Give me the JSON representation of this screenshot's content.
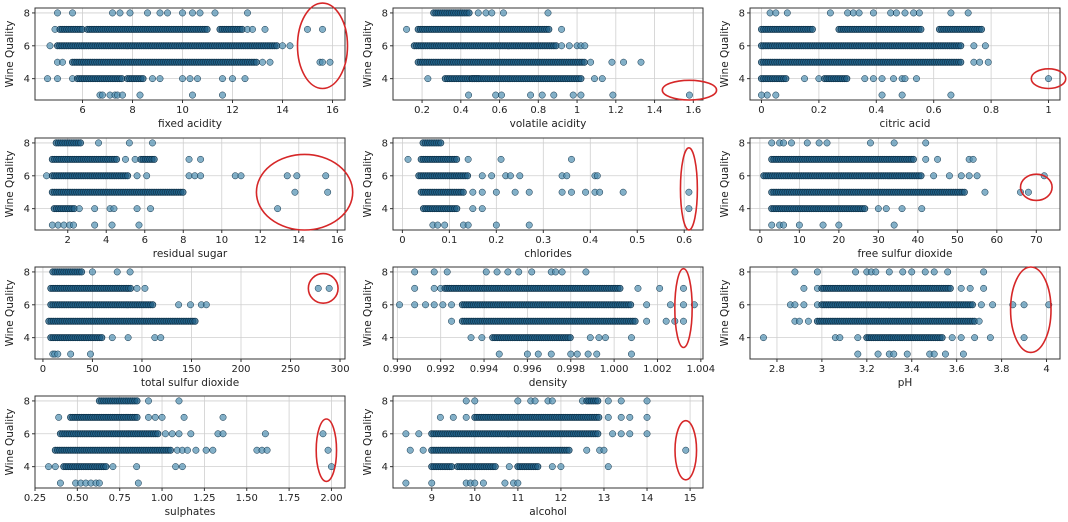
{
  "chart_data": [
    {
      "type": "scatter",
      "xlabel": "fixed acidity",
      "ylabel": "Wine Quality",
      "xlim": [
        4.1,
        16.5
      ],
      "ylim": [
        2.7,
        8.3
      ],
      "xticks": [
        6,
        8,
        10,
        12,
        14,
        16
      ],
      "yticks": [
        4,
        6,
        8
      ],
      "grid": true,
      "rows": {
        "8": [
          5,
          5.6,
          7.2,
          7.5,
          7.9,
          8.6,
          9.1,
          9.4,
          10,
          10.4,
          10.7,
          11.3,
          12.6
        ],
        "7": [
          4.9,
          [
            5.1,
            6
          ],
          [
            6.2,
            11
          ],
          [
            11.5,
            12.4
          ],
          12.6,
          12.8,
          13.3,
          15,
          15.6
        ],
        "6": [
          4.7,
          [
            5,
            13.8
          ],
          14,
          14.3
        ],
        "5": [
          5,
          5.2,
          [
            5.6,
            13
          ],
          13.2,
          13.5,
          15.5,
          15.6,
          15.9
        ],
        "4": [
          4.6,
          5,
          5.6,
          [
            5.8,
            7.6
          ],
          [
            7.8,
            8.5
          ],
          8.8,
          9.1,
          10,
          10.3,
          10.6,
          11.6,
          12,
          12.5
        ],
        "3": [
          6.7,
          6.8,
          7.1,
          7.3,
          7.4,
          7.6,
          8.3,
          10.4,
          11.6
        ]
      },
      "annotation": {
        "shape": "ellipse",
        "color": "#d62728",
        "cx": 15.6,
        "cy": 6,
        "rx": 1.0,
        "ry": 2.6
      }
    },
    {
      "type": "scatter",
      "xlabel": "volatile acidity",
      "ylabel": "Wine Quality",
      "xlim": [
        0.05,
        1.65
      ],
      "ylim": [
        2.7,
        8.3
      ],
      "xticks": [
        0.2,
        0.4,
        0.6,
        0.8,
        1.0,
        1.2,
        1.4,
        1.6
      ],
      "yticks": [
        4,
        6,
        8
      ],
      "grid": true,
      "rows": {
        "8": [
          [
            0.26,
            0.45
          ],
          0.49,
          0.53,
          0.56,
          0.62,
          0.85
        ],
        "7": [
          0.12,
          [
            0.18,
            0.86
          ],
          0.92
        ],
        "6": [
          [
            0.16,
            0.9
          ],
          0.92,
          0.96,
          1.0,
          1.02,
          1.04
        ],
        "5": [
          [
            0.18,
            1.04
          ],
          1.07,
          1.18,
          1.24,
          1.33
        ],
        "4": [
          0.23,
          [
            0.32,
            0.5
          ],
          [
            0.46,
            1.02
          ],
          1.09,
          1.13
        ],
        "3": [
          0.44,
          0.58,
          0.61,
          0.76,
          0.82,
          0.88,
          0.98,
          1.02,
          1.185,
          1.58
        ]
      },
      "annotation": {
        "shape": "ellipse",
        "color": "#d62728",
        "cx": 1.58,
        "cy": 3.3,
        "rx": 0.14,
        "ry": 0.6
      }
    },
    {
      "type": "scatter",
      "xlabel": "citric acid",
      "ylabel": "Wine Quality",
      "xlim": [
        -0.04,
        1.04
      ],
      "ylim": [
        2.7,
        8.3
      ],
      "xticks": [
        0.0,
        0.2,
        0.4,
        0.6,
        0.8,
        1.0
      ],
      "yticks": [
        4,
        6,
        8
      ],
      "grid": true,
      "rows": {
        "8": [
          0.03,
          0.05,
          0.09,
          0.24,
          0.3,
          0.32,
          0.34,
          0.39,
          0.45,
          0.47,
          0.5,
          0.53,
          0.55,
          0.66,
          0.72
        ],
        "7": [
          [
            0,
            0.18
          ],
          [
            0.27,
            0.56
          ],
          [
            0.62,
            0.77
          ]
        ],
        "6": [
          [
            0,
            0.7
          ],
          0.74,
          0.78
        ],
        "5": [
          [
            0,
            0.7
          ],
          0.74,
          0.76,
          0.79
        ],
        "4": [
          [
            0,
            0.09
          ],
          0.15,
          0.2,
          [
            0.22,
            0.3
          ],
          0.36,
          0.39,
          0.42,
          0.46,
          0.49,
          0.5,
          0.54,
          1.0
        ],
        "3": [
          0,
          0.02,
          0.05,
          0.42,
          0.49,
          0.66
        ]
      },
      "annotation": {
        "shape": "ellipse",
        "color": "#d62728",
        "cx": 1.0,
        "cy": 4,
        "rx": 0.06,
        "ry": 0.6
      }
    },
    {
      "type": "scatter",
      "xlabel": "residual sugar",
      "ylabel": "Wine Quality",
      "xlim": [
        0.3,
        16.4
      ],
      "ylim": [
        2.7,
        8.3
      ],
      "xticks": [
        2,
        4,
        6,
        8,
        10,
        12,
        14,
        16
      ],
      "yticks": [
        4,
        6,
        8
      ],
      "grid": true,
      "rows": {
        "8": [
          [
            1.4,
            2.7
          ],
          3.6,
          5.2,
          6.4
        ],
        "7": [
          [
            1.2,
            4.6
          ],
          5,
          5.5,
          [
            5.8,
            6.6
          ],
          8.3,
          8.9
        ],
        "6": [
          0.9,
          [
            1.2,
            5.2
          ],
          5.6,
          6.1,
          8.3,
          8.6,
          8.9,
          10.7,
          11,
          13.4,
          13.9,
          15.4
        ],
        "5": [
          [
            1.2,
            8
          ],
          13.8,
          15.5
        ],
        "4": [
          [
            1.3,
            2.4
          ],
          2.6,
          3.4,
          4.2,
          4.4,
          5.6,
          6.3,
          12.9
        ],
        "3": [
          1.2,
          1.5,
          1.8,
          2.1,
          2.3,
          3.4,
          4.3,
          5.7
        ]
      },
      "annotation": {
        "shape": "ellipse",
        "color": "#d62728",
        "cx": 14.3,
        "cy": 5,
        "rx": 2.5,
        "ry": 2.3
      }
    },
    {
      "type": "scatter",
      "xlabel": "chlorides",
      "ylabel": "Wine Quality",
      "xlim": [
        -0.02,
        0.64
      ],
      "ylim": [
        2.7,
        8.3
      ],
      "xticks": [
        0.0,
        0.1,
        0.2,
        0.3,
        0.4,
        0.5,
        0.6
      ],
      "yticks": [
        4,
        6,
        8
      ],
      "grid": true,
      "rows": {
        "8": [
          [
            0.044,
            0.086
          ]
        ],
        "7": [
          0.012,
          [
            0.04,
            0.12
          ],
          0.14,
          0.21,
          0.36
        ],
        "6": [
          [
            0.035,
            0.14
          ],
          0.17,
          0.19,
          0.22,
          0.23,
          0.25,
          0.34,
          0.35,
          0.41,
          0.415
        ],
        "5": [
          [
            0.04,
            0.13
          ],
          0.15,
          0.17,
          0.2,
          0.24,
          0.27,
          0.34,
          0.36,
          0.39,
          0.41,
          0.42,
          0.47,
          0.61
        ],
        "4": [
          [
            0.045,
            0.12
          ],
          0.15,
          0.17,
          0.61
        ],
        "3": [
          0.065,
          0.075,
          0.09,
          0.13,
          0.14,
          0.2,
          0.27
        ]
      },
      "annotation": {
        "shape": "ellipse",
        "color": "#d62728",
        "cx": 0.61,
        "cy": 5.2,
        "rx": 0.018,
        "ry": 2.5
      }
    },
    {
      "type": "scatter",
      "xlabel": "free sulfur dioxide",
      "ylabel": "Wine Quality",
      "xlim": [
        -2.5,
        76
      ],
      "ylim": [
        2.7,
        8.3
      ],
      "xticks": [
        0,
        10,
        20,
        30,
        40,
        50,
        60,
        70
      ],
      "yticks": [
        4,
        6,
        8
      ],
      "grid": true,
      "rows": {
        "8": [
          3,
          5,
          6,
          8,
          12,
          15,
          17,
          28,
          34,
          42
        ],
        "7": [
          [
            3,
            39
          ],
          42,
          45,
          53,
          54
        ],
        "6": [
          [
            1,
            41
          ],
          44,
          48,
          51,
          53,
          55,
          72
        ],
        "5": [
          [
            3,
            52
          ],
          57,
          66,
          68
        ],
        "4": [
          [
            3,
            27
          ],
          30,
          32,
          36,
          41
        ],
        "3": [
          3,
          5,
          6,
          10,
          16,
          20,
          34
        ]
      },
      "annotation": {
        "shape": "ellipse",
        "color": "#d62728",
        "cx": 70,
        "cy": 5.3,
        "rx": 4,
        "ry": 0.8
      }
    },
    {
      "type": "scatter",
      "xlabel": "total sulfur dioxide",
      "ylabel": "Wine Quality",
      "xlim": [
        -8,
        305
      ],
      "ylim": [
        2.7,
        8.3
      ],
      "xticks": [
        0,
        50,
        100,
        150,
        200,
        250,
        300
      ],
      "yticks": [
        4,
        6,
        8
      ],
      "grid": true,
      "rows": {
        "8": [
          [
            10,
            40
          ],
          50,
          75,
          88
        ],
        "7": [
          [
            8,
            90
          ],
          95,
          103,
          278,
          289
        ],
        "6": [
          [
            8,
            112
          ],
          137,
          149,
          160,
          165
        ],
        "5": [
          [
            6,
            155
          ]
        ],
        "4": [
          [
            8,
            60
          ],
          70,
          86,
          113,
          119
        ],
        "3": [
          10,
          12,
          15,
          28,
          48
        ]
      },
      "annotation": {
        "shape": "ellipse",
        "color": "#d62728",
        "cx": 283,
        "cy": 7,
        "rx": 15,
        "ry": 0.9
      }
    },
    {
      "type": "scatter",
      "xlabel": "density",
      "ylabel": "Wine Quality",
      "xlim": [
        0.9898,
        1.0041
      ],
      "ylim": [
        2.7,
        8.3
      ],
      "xticks": [
        0.99,
        0.992,
        0.994,
        0.996,
        0.998,
        1.0,
        1.002,
        1.004
      ],
      "xtick_labels": [
        "0.990",
        "0.992",
        "0.994",
        "0.996",
        "0.998",
        "1.000",
        "1.002",
        "1.004"
      ],
      "yticks": [
        4,
        6,
        8
      ],
      "grid": true,
      "rows": {
        "8": [
          0.9908,
          0.9917,
          0.9923,
          0.9941,
          0.9946,
          0.9951,
          0.9956,
          0.9962,
          0.9971,
          0.9973,
          0.9976,
          0.9987
        ],
        "7": [
          0.9908,
          0.9917,
          0.992,
          [
            0.9922,
            1.0003
          ],
          1.0011,
          1.0021,
          1.0032
        ],
        "6": [
          0.9901,
          0.9908,
          0.9913,
          0.9917,
          0.9921,
          0.9925,
          [
            0.993,
            1.0008
          ],
          1.0015,
          1.0026,
          1.0032,
          1.0037
        ],
        "5": [
          0.9925,
          [
            0.993,
            1.001
          ],
          1.0015,
          1.0024,
          1.0028,
          1.0032
        ],
        "4": [
          0.9934,
          0.9939,
          [
            0.9944,
            0.998
          ],
          0.9989,
          0.9993,
          0.9996,
          1.0008
        ],
        "3": [
          0.9947,
          0.996,
          0.9965,
          0.9971,
          0.998,
          0.9983,
          0.9988,
          0.9992,
          1.0008
        ]
      },
      "annotation": {
        "shape": "ellipse",
        "color": "#d62728",
        "cx": 1.0032,
        "cy": 5.8,
        "rx": 0.0004,
        "ry": 2.4
      }
    },
    {
      "type": "scatter",
      "xlabel": "pH",
      "ylabel": "Wine Quality",
      "xlim": [
        2.68,
        4.06
      ],
      "ylim": [
        2.7,
        8.3
      ],
      "xticks": [
        2.8,
        3.0,
        3.2,
        3.4,
        3.6,
        3.8,
        4.0
      ],
      "yticks": [
        4,
        6,
        8
      ],
      "grid": true,
      "rows": {
        "8": [
          2.88,
          2.98,
          3.15,
          3.2,
          3.22,
          3.24,
          3.3,
          3.36,
          3.4,
          3.46,
          3.5,
          3.56,
          3.72
        ],
        "7": [
          2.92,
          2.98,
          [
            3.0,
            3.58
          ],
          3.62,
          3.66,
          3.72
        ],
        "6": [
          2.86,
          2.88,
          2.92,
          2.98,
          [
            3.0,
            3.68
          ],
          3.71,
          3.76,
          3.85,
          3.9,
          4.01
        ],
        "5": [
          2.88,
          2.9,
          2.94,
          [
            2.98,
            3.68
          ],
          3.7
        ],
        "4": [
          2.74,
          3.06,
          3.08,
          3.16,
          [
            3.2,
            3.54
          ],
          3.58,
          3.62,
          3.68,
          3.75,
          3.9
        ],
        "3": [
          3.16,
          3.25,
          3.3,
          3.32,
          3.38,
          3.48,
          3.5,
          3.55,
          3.63
        ]
      },
      "annotation": {
        "shape": "ellipse",
        "color": "#d62728",
        "cx": 3.93,
        "cy": 5.7,
        "rx": 0.09,
        "ry": 2.6
      }
    },
    {
      "type": "scatter",
      "xlabel": "sulphates",
      "ylabel": "Wine Quality",
      "xlim": [
        0.25,
        2.08
      ],
      "ylim": [
        2.7,
        8.3
      ],
      "xticks": [
        0.25,
        0.5,
        0.75,
        1.0,
        1.25,
        1.5,
        1.75,
        2.0
      ],
      "xtick_labels": [
        "0.25",
        "0.50",
        "0.75",
        "1.00",
        "1.25",
        "1.50",
        "1.75",
        "2.00"
      ],
      "yticks": [
        4,
        6,
        8
      ],
      "grid": true,
      "rows": {
        "8": [
          [
            0.63,
            0.86
          ],
          0.92,
          1.1
        ],
        "7": [
          0.39,
          [
            0.46,
            0.86
          ],
          0.92,
          0.96,
          1.0,
          1.13,
          1.36
        ],
        "6": [
          [
            0.4,
            0.98
          ],
          1.02,
          1.06,
          1.1,
          1.17,
          1.33,
          1.36,
          1.61,
          1.95
        ],
        "5": [
          [
            0.37,
            1.06
          ],
          1.09,
          1.12,
          1.15,
          1.2,
          1.26,
          1.3,
          1.56,
          1.59,
          1.62,
          1.98
        ],
        "4": [
          0.33,
          0.37,
          [
            0.42,
            0.68
          ],
          0.71,
          0.85,
          1.08,
          1.12,
          2.0
        ],
        "3": [
          0.4,
          0.49,
          0.52,
          0.55,
          0.58,
          0.61,
          0.63,
          0.86
        ]
      },
      "annotation": {
        "shape": "ellipse",
        "color": "#d62728",
        "cx": 1.97,
        "cy": 5,
        "rx": 0.06,
        "ry": 1.9
      }
    },
    {
      "type": "scatter",
      "xlabel": "alcohol",
      "ylabel": "Wine Quality",
      "xlim": [
        8.1,
        15.3
      ],
      "ylim": [
        2.7,
        8.3
      ],
      "xticks": [
        9,
        10,
        11,
        12,
        13,
        14,
        15
      ],
      "yticks": [
        4,
        6,
        8
      ],
      "grid": true,
      "rows": {
        "8": [
          9.8,
          10,
          11,
          11.3,
          11.4,
          11.7,
          11.8,
          12.5,
          [
            12.6,
            12.9
          ],
          13.1,
          13.4,
          14
        ],
        "7": [
          9.2,
          9.5,
          9.8,
          [
            10,
            12.9
          ],
          13.1,
          13.4,
          13.6,
          14
        ],
        "6": [
          8.4,
          8.7,
          [
            9,
            12.9
          ],
          13.2,
          13.4,
          13.6,
          14
        ],
        "5": [
          8.5,
          8.8,
          [
            9,
            12.2
          ],
          12.6,
          12.9,
          13,
          14.9
        ],
        "4": [
          [
            9,
            9.5
          ],
          [
            9.6,
            10.5
          ],
          10.8,
          [
            11,
            11.5
          ],
          11.8,
          12,
          13.1
        ],
        "3": [
          8.4,
          9,
          9.8,
          9.9,
          10,
          10.2,
          10.7,
          10.9,
          11
        ]
      },
      "annotation": {
        "shape": "ellipse",
        "color": "#d62728",
        "cx": 14.9,
        "cy": 5,
        "rx": 0.25,
        "ry": 1.8
      }
    }
  ],
  "colors": {
    "point_fill": "#4f8fb0",
    "point_edge": "#0b2e45",
    "grid": "#cfcfcf",
    "axes": "#333333",
    "annotation": "#d62728"
  }
}
